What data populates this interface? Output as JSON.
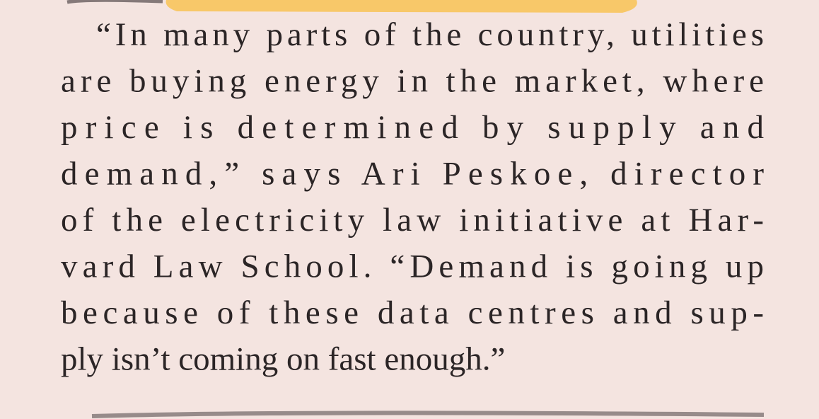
{
  "article": {
    "lines": [
      "“In many parts of the country, utilities",
      "are buying energy in the market, where",
      "price is determined by supply and",
      "demand,” says Ari Peskoe, director",
      "of the electricity law initiative at Har-",
      "vard Law School. “Demand is going up",
      "because of these data centres and sup-",
      "ply isn’t coming on fast enough.”"
    ]
  }
}
